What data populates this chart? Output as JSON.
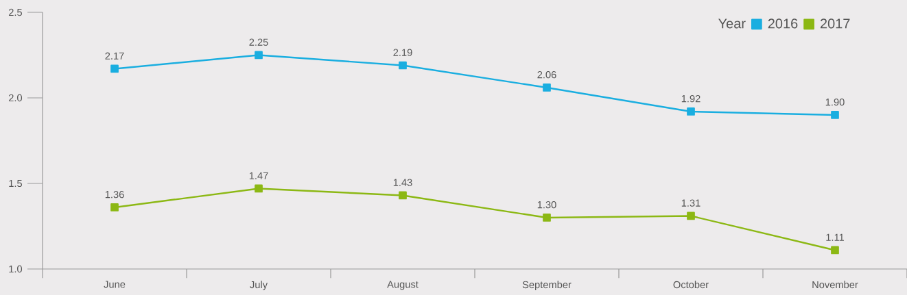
{
  "chart_data": {
    "type": "line",
    "categories": [
      "June",
      "July",
      "August",
      "September",
      "October",
      "November"
    ],
    "legend_title": "Year",
    "legend": "top right",
    "marker": "square",
    "line_style": "solid",
    "grid": false,
    "ylim": [
      1.0,
      2.5
    ],
    "yticks": [
      {
        "value": 1.0,
        "label": "1.0"
      },
      {
        "value": 1.5,
        "label": "1.5"
      },
      {
        "value": 2.0,
        "label": "2.0"
      },
      {
        "value": 2.5,
        "label": "2.5"
      }
    ],
    "series": [
      {
        "name": "2016",
        "color": "#1aaee0",
        "values": [
          2.17,
          2.25,
          2.19,
          2.06,
          1.92,
          1.9
        ],
        "value_labels": [
          "2.17",
          "2.25",
          "2.19",
          "2.06",
          "1.92",
          "1.90"
        ]
      },
      {
        "name": "2017",
        "color": "#8cb814",
        "values": [
          1.36,
          1.47,
          1.43,
          1.3,
          1.31,
          1.11
        ],
        "value_labels": [
          "1.36",
          "1.47",
          "1.43",
          "1.30",
          "1.31",
          "1.11"
        ]
      }
    ]
  }
}
